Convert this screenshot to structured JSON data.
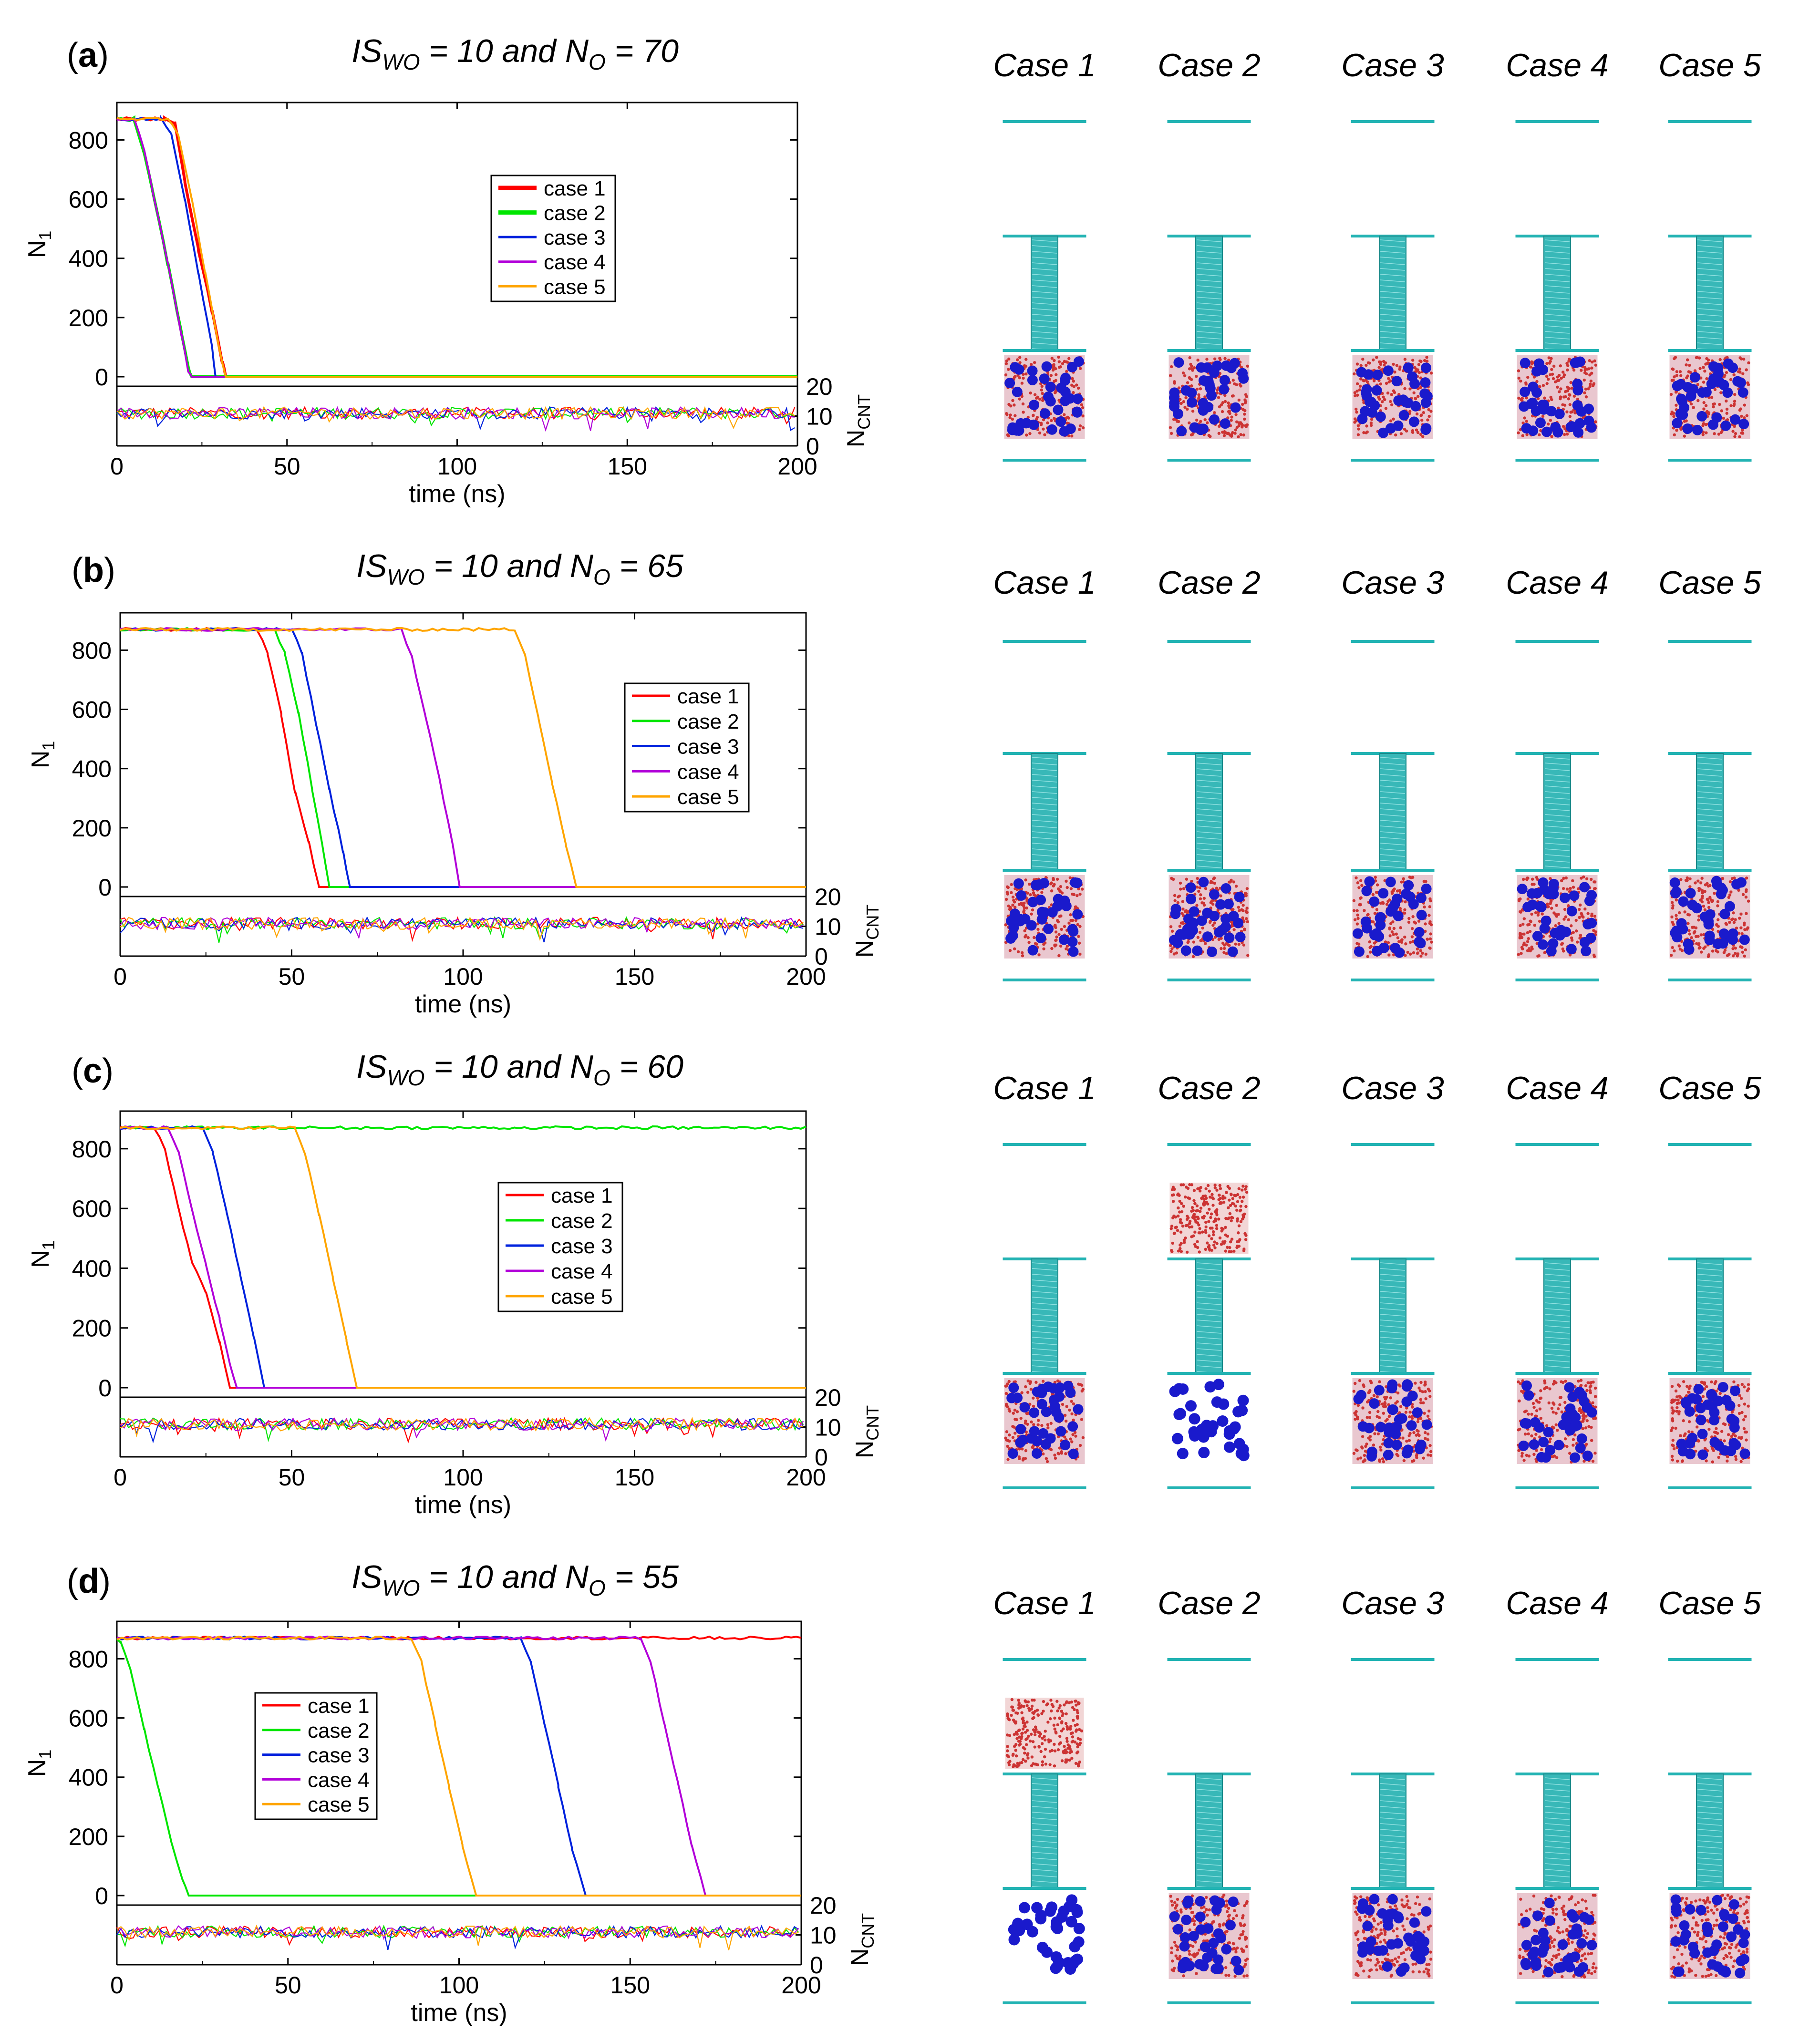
{
  "colors": {
    "case1": "#ff0000",
    "case2": "#00e600",
    "case3": "#0022dd",
    "case4": "#b200d9",
    "case5": "#ffa500",
    "cnt": "#22b3b3",
    "water": "#cc3333",
    "oil": "#1a1acc"
  },
  "axis_labels": {
    "xlabel": "time (ns)",
    "ylabel": "N",
    "ylabel_sub": "1",
    "y2label": "N",
    "y2label_sub": "CNT"
  },
  "panels": [
    {
      "label_open": "(",
      "label_letter": "a",
      "label_close": ")",
      "title": {
        "prefix": "IS",
        "sub": "WO",
        "mid": " = 10 and N",
        "sub2": "O",
        "suffix": " = 70"
      },
      "legend_position": "upper-center",
      "snapshot_cases": [
        "Case 1",
        "Case 2",
        "Case 3",
        "Case 4",
        "Case 5"
      ],
      "snapshot_states": [
        "filled",
        "filled",
        "filled",
        "filled",
        "filled"
      ]
    },
    {
      "label_open": "(",
      "label_letter": "b",
      "label_close": ")",
      "title": {
        "prefix": "IS",
        "sub": "WO",
        "mid": " = 10 and N",
        "sub2": "O",
        "suffix": " = 65"
      },
      "legend_position": "right",
      "snapshot_cases": [
        "Case 1",
        "Case 2",
        "Case 3",
        "Case 4",
        "Case 5"
      ],
      "snapshot_states": [
        "filled",
        "filled",
        "filled",
        "filled",
        "filled"
      ]
    },
    {
      "label_open": "(",
      "label_letter": "c",
      "label_close": ")",
      "title": {
        "prefix": "IS",
        "sub": "WO",
        "mid": " = 10 and N",
        "sub2": "O",
        "suffix": " = 60"
      },
      "legend_position": "center",
      "snapshot_cases": [
        "Case 1",
        "Case 2",
        "Case 3",
        "Case 4",
        "Case 5"
      ],
      "snapshot_states": [
        "filled",
        "separated",
        "filled",
        "filled",
        "filled"
      ]
    },
    {
      "label_open": "(",
      "label_letter": "d",
      "label_close": ")",
      "title": {
        "prefix": "IS",
        "sub": "WO",
        "mid": " = 10 and N",
        "sub2": "O",
        "suffix": " = 55"
      },
      "legend_position": "left",
      "snapshot_cases": [
        "Case 1",
        "Case 2",
        "Case 3",
        "Case 4",
        "Case 5"
      ],
      "snapshot_states": [
        "separated",
        "filled",
        "filled",
        "filled",
        "filled"
      ]
    }
  ],
  "chart_data": [
    {
      "type": "line",
      "title": "IS_WO = 10 and N_O = 70",
      "xlabel": "time (ns)",
      "ylabel": "N_1",
      "y2label": "N_CNT",
      "xlim": [
        0,
        200
      ],
      "ylim": [
        -200,
        900
      ],
      "y2lim": [
        0,
        20
      ],
      "xticks": [
        0,
        50,
        100,
        150,
        200
      ],
      "yticks": [
        0,
        200,
        400,
        600,
        800
      ],
      "y2ticks": [
        0,
        10,
        20
      ],
      "legend": [
        "case 1",
        "case 2",
        "case 3",
        "case 4",
        "case 5"
      ],
      "series": [
        {
          "name": "case 1",
          "x": [
            0,
            14,
            17,
            20,
            24,
            28,
            31,
            32,
            200
          ],
          "y": [
            870,
            870,
            860,
            660,
            430,
            220,
            50,
            0,
            0
          ]
        },
        {
          "name": "case 2",
          "x": [
            0,
            5,
            8,
            11,
            15,
            19,
            21,
            22,
            200
          ],
          "y": [
            870,
            870,
            760,
            600,
            380,
            150,
            30,
            0,
            0
          ]
        },
        {
          "name": "case 3",
          "x": [
            0,
            13,
            16,
            20,
            24,
            28,
            29,
            200
          ],
          "y": [
            870,
            870,
            820,
            600,
            350,
            100,
            0,
            0
          ]
        },
        {
          "name": "case 4",
          "x": [
            0,
            5,
            8,
            11,
            15,
            19,
            21,
            22,
            200
          ],
          "y": [
            870,
            870,
            770,
            600,
            380,
            140,
            20,
            0,
            0
          ]
        },
        {
          "name": "case 5",
          "x": [
            0,
            15,
            18,
            22,
            26,
            30,
            32,
            200
          ],
          "y": [
            870,
            870,
            820,
            600,
            350,
            100,
            0,
            0
          ]
        }
      ],
      "ncnt_mean": [
        11,
        11,
        11,
        11,
        11
      ]
    },
    {
      "type": "line",
      "title": "IS_WO = 10 and N_O = 65",
      "xlabel": "time (ns)",
      "ylabel": "N_1",
      "y2label": "N_CNT",
      "xlim": [
        0,
        200
      ],
      "ylim": [
        -200,
        900
      ],
      "y2lim": [
        0,
        20
      ],
      "xticks": [
        0,
        50,
        100,
        150,
        200
      ],
      "yticks": [
        0,
        200,
        400,
        600,
        800
      ],
      "y2ticks": [
        0,
        10,
        20
      ],
      "legend": [
        "case 1",
        "case 2",
        "case 3",
        "case 4",
        "case 5"
      ],
      "series": [
        {
          "name": "case 1",
          "x": [
            0,
            40,
            43,
            47,
            51,
            55,
            58,
            200
          ],
          "y": [
            870,
            870,
            790,
            580,
            320,
            150,
            0,
            0
          ]
        },
        {
          "name": "case 2",
          "x": [
            0,
            45,
            48,
            52,
            56,
            59,
            61,
            200
          ],
          "y": [
            870,
            870,
            790,
            590,
            330,
            140,
            0,
            0
          ]
        },
        {
          "name": "case 3",
          "x": [
            0,
            50,
            53,
            57,
            61,
            65,
            67,
            200
          ],
          "y": [
            870,
            870,
            790,
            560,
            330,
            120,
            0,
            0
          ]
        },
        {
          "name": "case 4",
          "x": [
            0,
            82,
            85,
            89,
            93,
            97,
            99,
            200
          ],
          "y": [
            870,
            870,
            780,
            580,
            370,
            140,
            0,
            0
          ]
        },
        {
          "name": "case 5",
          "x": [
            0,
            115,
            118,
            122,
            126,
            130,
            133,
            200
          ],
          "y": [
            870,
            870,
            790,
            570,
            350,
            140,
            0,
            0
          ]
        }
      ],
      "ncnt_mean": [
        11,
        11,
        11,
        11,
        11
      ]
    },
    {
      "type": "line",
      "title": "IS_WO = 10 and N_O = 60",
      "xlabel": "time (ns)",
      "ylabel": "N_1",
      "y2label": "N_CNT",
      "xlim": [
        0,
        200
      ],
      "ylim": [
        -200,
        900
      ],
      "y2lim": [
        0,
        20
      ],
      "xticks": [
        0,
        50,
        100,
        150,
        200
      ],
      "yticks": [
        0,
        200,
        400,
        600,
        800
      ],
      "y2ticks": [
        0,
        10,
        20
      ],
      "legend": [
        "case 1",
        "case 2",
        "case 3",
        "case 4",
        "case 5"
      ],
      "series": [
        {
          "name": "case 1",
          "x": [
            0,
            10,
            13,
            17,
            21,
            25,
            29,
            32,
            200
          ],
          "y": [
            870,
            870,
            800,
            600,
            420,
            320,
            150,
            0,
            0
          ]
        },
        {
          "name": "case 2",
          "x": [
            0,
            200
          ],
          "y": [
            870,
            870
          ]
        },
        {
          "name": "case 3",
          "x": [
            0,
            24,
            27,
            31,
            35,
            39,
            42,
            200
          ],
          "y": [
            870,
            870,
            790,
            590,
            380,
            170,
            0,
            0
          ]
        },
        {
          "name": "case 4",
          "x": [
            0,
            14,
            17,
            21,
            25,
            29,
            32,
            34,
            200
          ],
          "y": [
            870,
            870,
            790,
            590,
            410,
            230,
            80,
            0,
            0
          ]
        },
        {
          "name": "case 5",
          "x": [
            0,
            51,
            54,
            58,
            62,
            66,
            69,
            200
          ],
          "y": [
            870,
            870,
            780,
            580,
            370,
            160,
            0,
            0
          ]
        }
      ],
      "ncnt_mean": [
        11,
        11,
        11,
        11,
        11
      ]
    },
    {
      "type": "line",
      "title": "IS_WO = 10 and N_O = 55",
      "xlabel": "time (ns)",
      "ylabel": "N_1",
      "y2label": "N_CNT",
      "xlim": [
        0,
        200
      ],
      "ylim": [
        -200,
        900
      ],
      "y2lim": [
        0,
        20
      ],
      "xticks": [
        0,
        50,
        100,
        150,
        200
      ],
      "yticks": [
        0,
        200,
        400,
        600,
        800
      ],
      "y2ticks": [
        0,
        10,
        20
      ],
      "legend": [
        "case 1",
        "case 2",
        "case 3",
        "case 4",
        "case 5"
      ],
      "series": [
        {
          "name": "case 1",
          "x": [
            0,
            200
          ],
          "y": [
            870,
            870
          ]
        },
        {
          "name": "case 2",
          "x": [
            0,
            1,
            4,
            8,
            12,
            16,
            19,
            21,
            200
          ],
          "y": [
            870,
            860,
            760,
            560,
            370,
            180,
            60,
            0,
            0
          ]
        },
        {
          "name": "case 3",
          "x": [
            0,
            118,
            121,
            125,
            129,
            133,
            137,
            200
          ],
          "y": [
            870,
            870,
            790,
            580,
            370,
            160,
            0,
            0
          ]
        },
        {
          "name": "case 4",
          "x": [
            0,
            153,
            156,
            160,
            164,
            168,
            172,
            200
          ],
          "y": [
            870,
            870,
            790,
            580,
            380,
            170,
            0,
            0
          ]
        },
        {
          "name": "case 5",
          "x": [
            0,
            86,
            89,
            93,
            97,
            101,
            105,
            200
          ],
          "y": [
            870,
            870,
            790,
            580,
            370,
            170,
            0,
            0
          ]
        }
      ],
      "ncnt_mean": [
        11,
        11,
        11,
        11,
        11
      ]
    }
  ]
}
